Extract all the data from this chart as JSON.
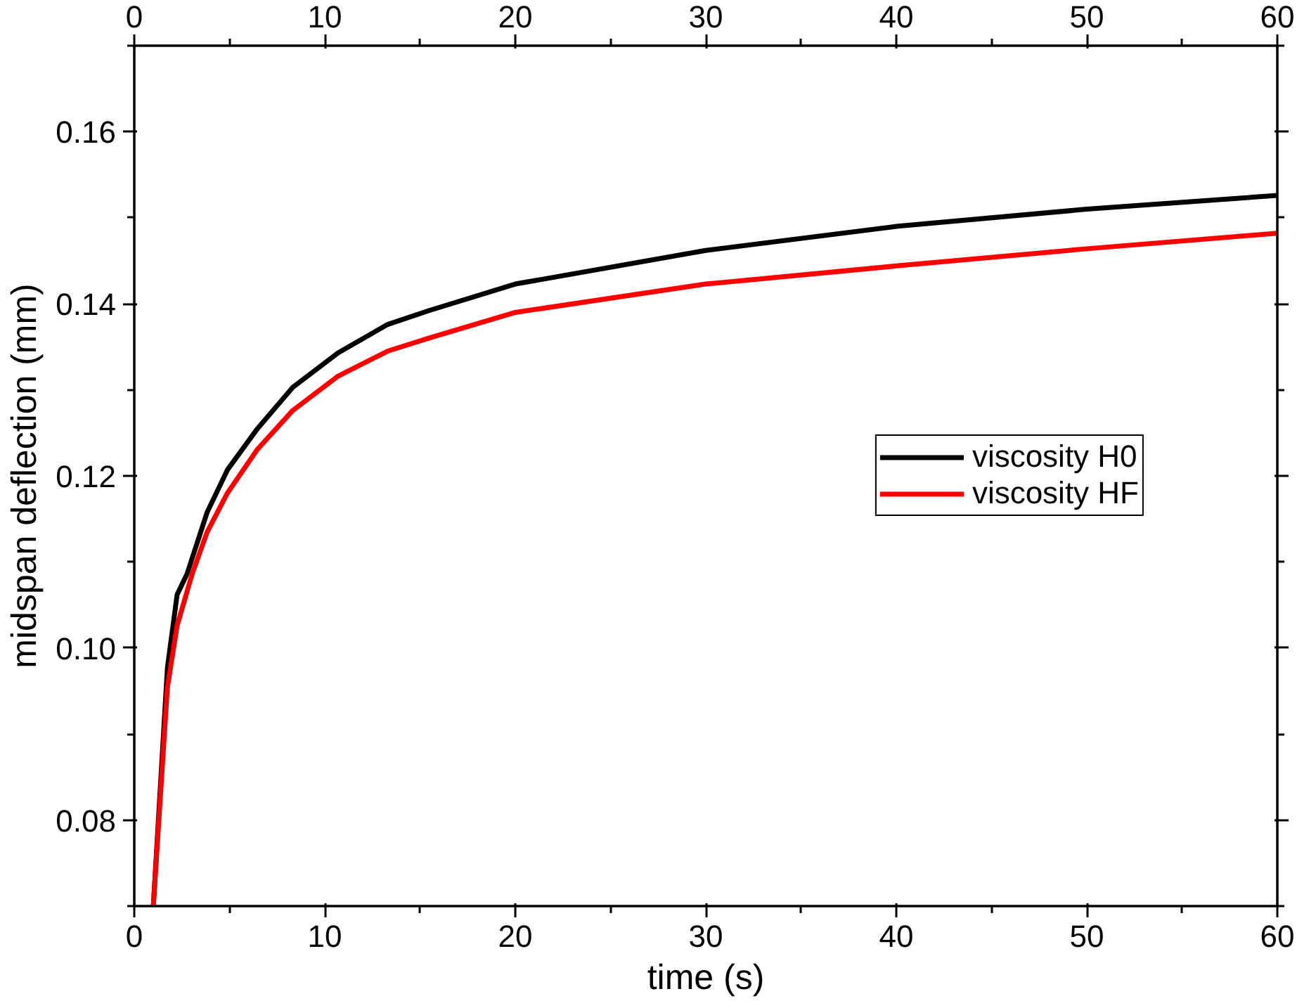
{
  "chart_data": {
    "type": "line",
    "xlabel": "time (s)",
    "ylabel": "midspan deflection (mm)",
    "xlim": [
      0,
      60
    ],
    "xticks": [
      0,
      10,
      20,
      30,
      40,
      50,
      60
    ],
    "x2lim": [
      0,
      60
    ],
    "x2ticks": [
      0,
      10,
      20,
      30,
      40,
      50,
      60
    ],
    "ylim": [
      0.07,
      0.17
    ],
    "yticks": [
      {
        "value": 0.08,
        "label": "0.08"
      },
      {
        "value": 0.1,
        "label": "0.10"
      },
      {
        "value": 0.12,
        "label": "0.12"
      },
      {
        "value": 0.14,
        "label": "0.14"
      },
      {
        "value": 0.16,
        "label": "0.16"
      }
    ],
    "grid": false,
    "legend": "right",
    "line_style": "solid",
    "marker": "none",
    "series": [
      {
        "name": "viscosity H0",
        "color": "#000000",
        "x": [
          1.0,
          1.74,
          2.25,
          2.77,
          3.83,
          4.89,
          6.47,
          8.32,
          10.7,
          13.3,
          15.45,
          20,
          30,
          40,
          50,
          60
        ],
        "values": [
          0.07,
          0.0977,
          0.1062,
          0.1086,
          0.1158,
          0.1207,
          0.1255,
          0.1303,
          0.1343,
          0.1376,
          0.1392,
          0.1423,
          0.1462,
          0.149,
          0.151,
          0.1526
        ]
      },
      {
        "name": "viscosity HF",
        "color": "#ff0000",
        "x": [
          1.0,
          1.74,
          2.25,
          3.04,
          3.83,
          4.89,
          6.47,
          8.32,
          10.7,
          13.3,
          15.45,
          20,
          30,
          40,
          50,
          60
        ],
        "values": [
          0.07,
          0.0954,
          0.1026,
          0.1086,
          0.1135,
          0.118,
          0.1231,
          0.1276,
          0.1316,
          0.1345,
          0.136,
          0.139,
          0.1423,
          0.1444,
          0.1464,
          0.1482
        ]
      }
    ]
  }
}
